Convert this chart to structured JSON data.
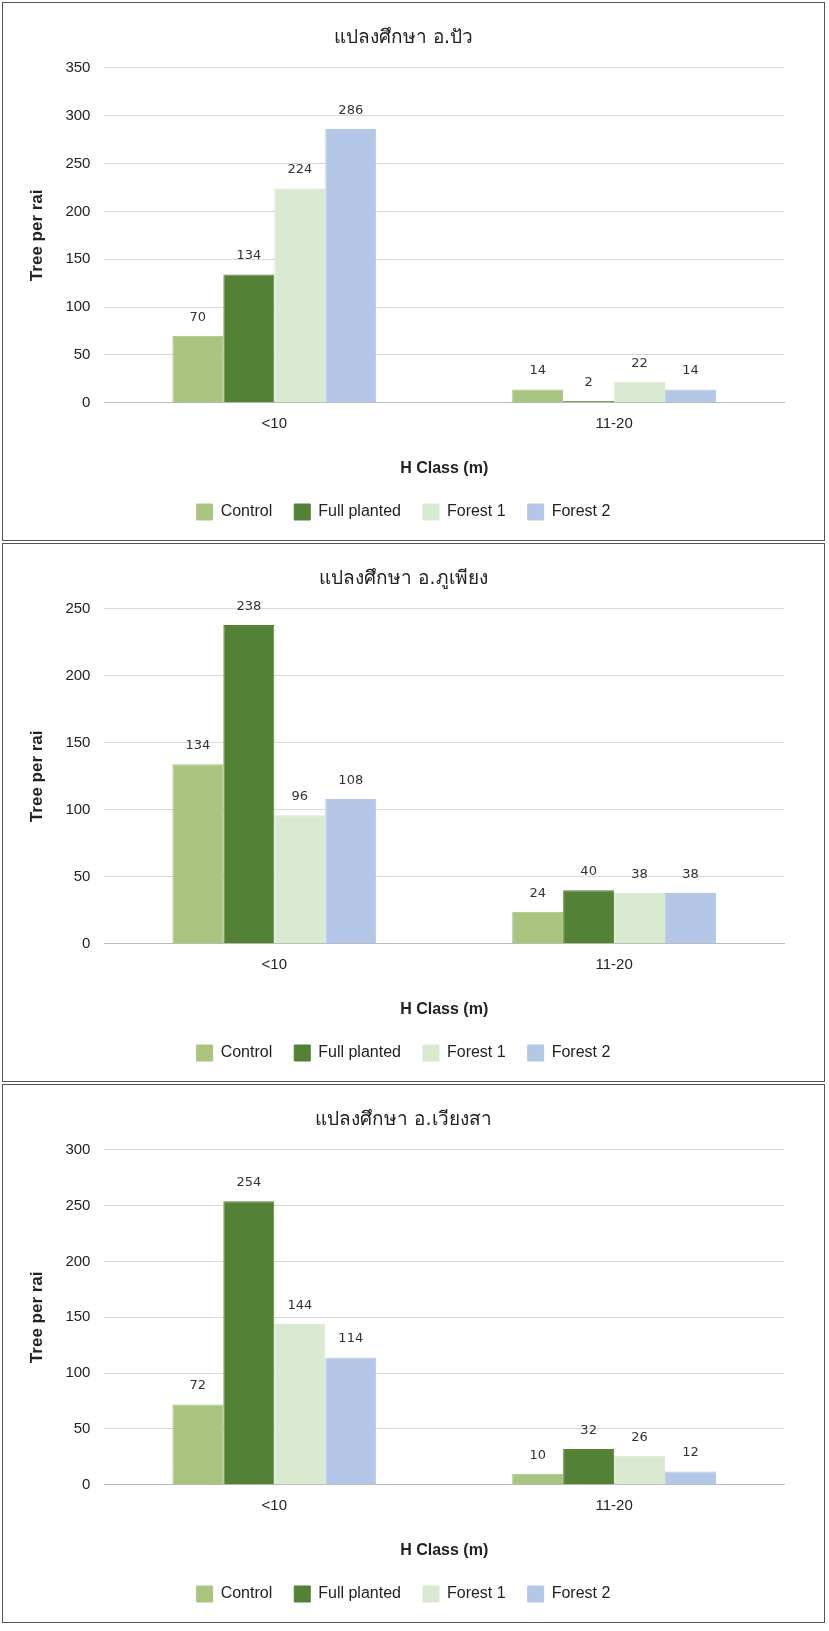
{
  "chart_data": [
    {
      "type": "bar",
      "title": "แปลงศึกษา อ.ปัว",
      "xlabel": "H Class (m)",
      "ylabel": "Tree per rai",
      "categories": [
        "<10",
        "11-20"
      ],
      "series": [
        {
          "name": "Control",
          "color": "#a9c47f",
          "values": [
            70,
            14
          ]
        },
        {
          "name": "Full planted",
          "color": "#538135",
          "values": [
            134,
            2
          ]
        },
        {
          "name": "Forest 1",
          "color": "#d9ead0",
          "values": [
            224,
            22
          ]
        },
        {
          "name": "Forest 2",
          "color": "#b4c7e7",
          "values": [
            286,
            14
          ]
        }
      ],
      "ylim": [
        0,
        350
      ],
      "yticks": [
        0,
        50,
        100,
        150,
        200,
        250,
        300,
        350
      ],
      "grid": "y",
      "legend": "bottom",
      "data_labels": true
    },
    {
      "type": "bar",
      "title": "แปลงศึกษา อ.ภูเพียง",
      "xlabel": "H Class (m)",
      "ylabel": "Tree per rai",
      "categories": [
        "<10",
        "11-20"
      ],
      "series": [
        {
          "name": "Control",
          "color": "#a9c47f",
          "values": [
            134,
            24
          ]
        },
        {
          "name": "Full planted",
          "color": "#538135",
          "values": [
            238,
            40
          ]
        },
        {
          "name": "Forest 1",
          "color": "#d9ead0",
          "values": [
            96,
            38
          ]
        },
        {
          "name": "Forest 2",
          "color": "#b4c7e7",
          "values": [
            108,
            38
          ]
        }
      ],
      "ylim": [
        0,
        250
      ],
      "yticks": [
        0,
        50,
        100,
        150,
        200,
        250
      ],
      "grid": "y",
      "legend": "bottom",
      "data_labels": true
    },
    {
      "type": "bar",
      "title": "แปลงศึกษา อ.เวียงสา",
      "xlabel": "H Class (m)",
      "ylabel": "Tree per rai",
      "categories": [
        "<10",
        "11-20"
      ],
      "series": [
        {
          "name": "Control",
          "color": "#a9c47f",
          "values": [
            72,
            10
          ]
        },
        {
          "name": "Full planted",
          "color": "#538135",
          "values": [
            254,
            32
          ]
        },
        {
          "name": "Forest 1",
          "color": "#d9ead0",
          "values": [
            144,
            26
          ]
        },
        {
          "name": "Forest 2",
          "color": "#b4c7e7",
          "values": [
            114,
            12
          ]
        }
      ],
      "ylim": [
        0,
        300
      ],
      "yticks": [
        0,
        50,
        100,
        150,
        200,
        250,
        300
      ],
      "grid": "y",
      "legend": "bottom",
      "data_labels": true
    }
  ]
}
